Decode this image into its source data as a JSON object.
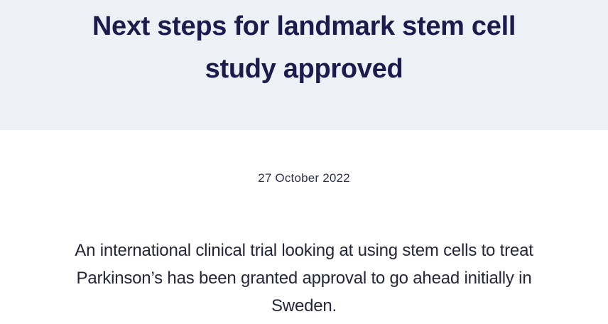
{
  "banner": {
    "title": "Next steps for landmark stem cell study approved",
    "title_lines": [
      "Next steps for landmark stem cell",
      "study approved"
    ]
  },
  "article": {
    "date": "27 October 2022",
    "intro": "An international clinical trial looking at using stem cells to treat Parkinson’s has been granted approval to go ahead initially in Sweden.",
    "intro_lines": [
      "An international clinical trial looking at using stem cells to treat",
      "Parkinson’s has been granted approval to go ahead initially in",
      "Sweden."
    ]
  },
  "colors": {
    "banner_bg": "#edf1f6",
    "heading_text": "#1b1b4d",
    "date_text": "#30304c",
    "body_text": "#26263a"
  }
}
